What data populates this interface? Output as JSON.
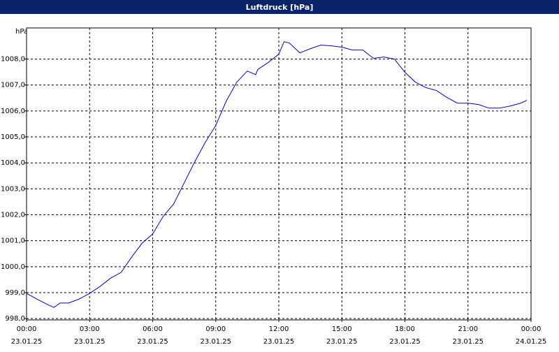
{
  "chart_data": {
    "type": "line",
    "title": "Luftdruck [hPa]",
    "y_label": "hPa",
    "grid": true,
    "x": [
      0,
      0.5,
      1,
      1.3,
      1.6,
      2,
      2.5,
      3,
      3.5,
      4,
      4.5,
      5,
      5.5,
      6,
      6.5,
      7,
      7.5,
      8,
      8.5,
      9,
      9.5,
      10,
      10.5,
      10.9,
      11,
      11.5,
      12,
      12.25,
      12.5,
      13,
      13.5,
      14,
      14.5,
      15,
      15.5,
      16,
      16.5,
      17,
      17.5,
      18,
      18.5,
      19,
      19.5,
      20,
      20.5,
      21,
      21.5,
      22,
      22.5,
      23,
      23.5,
      23.8
    ],
    "series": [
      {
        "name": "Luftdruck",
        "color": "#0000cc",
        "values": [
          998.97,
          998.75,
          998.54,
          998.43,
          998.6,
          998.6,
          998.75,
          998.97,
          999.24,
          999.56,
          999.78,
          1000.37,
          1000.91,
          1001.26,
          1001.94,
          1002.42,
          1003.23,
          1004.04,
          1004.79,
          1005.44,
          1006.38,
          1007.11,
          1007.54,
          1007.4,
          1007.6,
          1007.87,
          1008.19,
          1008.67,
          1008.62,
          1008.24,
          1008.4,
          1008.54,
          1008.51,
          1008.46,
          1008.35,
          1008.35,
          1008.03,
          1008.08,
          1008.0,
          1007.49,
          1007.11,
          1006.9,
          1006.79,
          1006.52,
          1006.3,
          1006.3,
          1006.25,
          1006.11,
          1006.11,
          1006.19,
          1006.3,
          1006.41
        ]
      }
    ],
    "xlim": [
      0,
      24
    ],
    "xticks": [
      {
        "value": 0,
        "label": "00:00",
        "date": "23.01.25"
      },
      {
        "value": 3,
        "label": "03:00",
        "date": "23.01.25"
      },
      {
        "value": 6,
        "label": "06:00",
        "date": "23.01.25"
      },
      {
        "value": 9,
        "label": "09:00",
        "date": "23.01.25"
      },
      {
        "value": 12,
        "label": "12:00",
        "date": "23.01.25"
      },
      {
        "value": 15,
        "label": "15:00",
        "date": "23.01.25"
      },
      {
        "value": 18,
        "label": "18:00",
        "date": "23.01.25"
      },
      {
        "value": 21,
        "label": "21:00",
        "date": "23.01.25"
      },
      {
        "value": 24,
        "label": "00:00",
        "date": "24.01.25"
      }
    ],
    "ylim": [
      997.95,
      1009.2
    ],
    "yticks": [
      {
        "value": 998,
        "label": "998,0"
      },
      {
        "value": 999,
        "label": "999,0"
      },
      {
        "value": 1000,
        "label": "1000,0"
      },
      {
        "value": 1001,
        "label": "1001,0"
      },
      {
        "value": 1002,
        "label": "1002,0"
      },
      {
        "value": 1003,
        "label": "1003,0"
      },
      {
        "value": 1004,
        "label": "1004,0"
      },
      {
        "value": 1005,
        "label": "1005,0"
      },
      {
        "value": 1006,
        "label": "1006,0"
      },
      {
        "value": 1007,
        "label": "1007,0"
      },
      {
        "value": 1008,
        "label": "1008,0"
      }
    ]
  }
}
